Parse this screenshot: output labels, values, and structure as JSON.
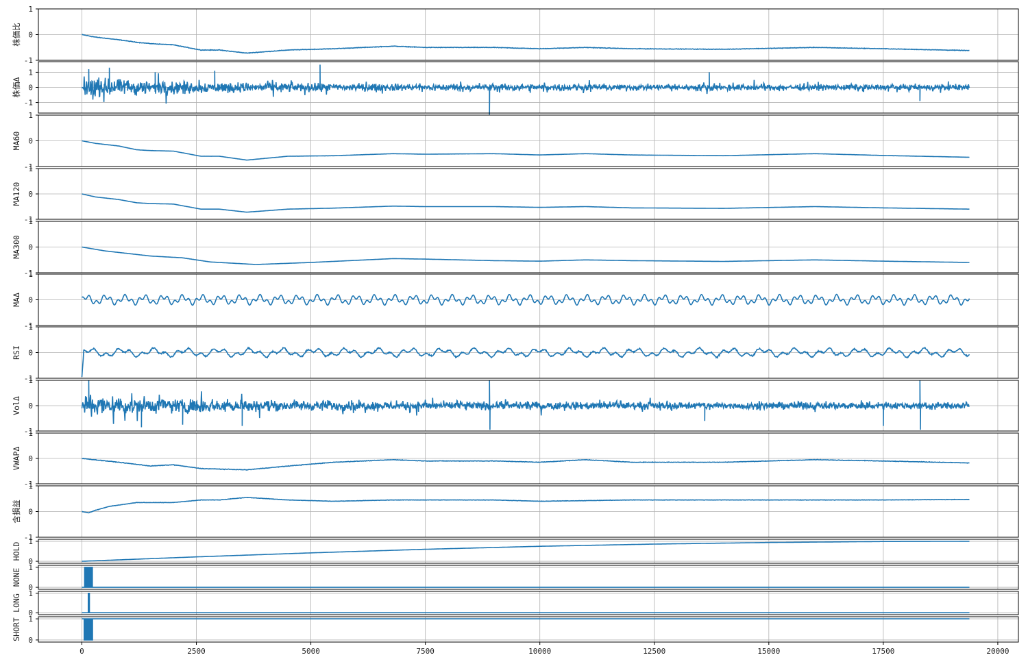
{
  "chart_data": {
    "type": "line",
    "x_range": [
      -950,
      20450
    ],
    "x_ticks": [
      0,
      2500,
      5000,
      7500,
      10000,
      12500,
      15000,
      17500,
      20000
    ],
    "n_points": 19380,
    "grid": true,
    "color": "#1f77b4",
    "panels": [
      {
        "name": "株価比",
        "ylim": [
          -1,
          1
        ],
        "yticks": [
          1,
          0,
          -1
        ],
        "kind": "line",
        "keypoints": [
          [
            0,
            0
          ],
          [
            300,
            -0.1
          ],
          [
            800,
            -0.2
          ],
          [
            1200,
            -0.3
          ],
          [
            1500,
            -0.35
          ],
          [
            2000,
            -0.4
          ],
          [
            2600,
            -0.6
          ],
          [
            3000,
            -0.6
          ],
          [
            3600,
            -0.72
          ],
          [
            4500,
            -0.6
          ],
          [
            5500,
            -0.55
          ],
          [
            6800,
            -0.45
          ],
          [
            7500,
            -0.5
          ],
          [
            9000,
            -0.5
          ],
          [
            10000,
            -0.55
          ],
          [
            11000,
            -0.5
          ],
          [
            12000,
            -0.55
          ],
          [
            14000,
            -0.57
          ],
          [
            16000,
            -0.5
          ],
          [
            17500,
            -0.55
          ],
          [
            19380,
            -0.62
          ]
        ],
        "noise": 0.015
      },
      {
        "name": "株価Δ",
        "ylim": [
          -1.7,
          1.7
        ],
        "yticks": [
          1,
          0,
          -1
        ],
        "kind": "noise",
        "amplitude": 0.28,
        "spikes": [
          [
            150,
            1.2
          ],
          [
            600,
            1.3
          ],
          [
            1600,
            1.0
          ],
          [
            2900,
            1.1
          ],
          [
            5200,
            1.5
          ],
          [
            8900,
            -1.8
          ],
          [
            13700,
            1.0
          ],
          [
            18300,
            -0.9
          ]
        ]
      },
      {
        "name": "MA60",
        "ylim": [
          -1,
          1
        ],
        "yticks": [
          1,
          0,
          -1
        ],
        "kind": "line",
        "keypoints": [
          [
            0,
            0
          ],
          [
            300,
            -0.1
          ],
          [
            800,
            -0.2
          ],
          [
            1200,
            -0.35
          ],
          [
            1500,
            -0.38
          ],
          [
            2000,
            -0.4
          ],
          [
            2600,
            -0.6
          ],
          [
            3000,
            -0.6
          ],
          [
            3600,
            -0.75
          ],
          [
            4500,
            -0.6
          ],
          [
            5500,
            -0.58
          ],
          [
            6800,
            -0.5
          ],
          [
            7500,
            -0.52
          ],
          [
            9000,
            -0.5
          ],
          [
            10000,
            -0.55
          ],
          [
            11000,
            -0.5
          ],
          [
            12000,
            -0.55
          ],
          [
            14000,
            -0.58
          ],
          [
            16000,
            -0.5
          ],
          [
            17500,
            -0.57
          ],
          [
            19380,
            -0.64
          ]
        ],
        "noise": 0.003
      },
      {
        "name": "MA120",
        "ylim": [
          -1,
          1
        ],
        "yticks": [
          1,
          0,
          -1
        ],
        "kind": "line",
        "keypoints": [
          [
            0,
            0
          ],
          [
            300,
            -0.12
          ],
          [
            800,
            -0.22
          ],
          [
            1200,
            -0.35
          ],
          [
            1500,
            -0.38
          ],
          [
            2000,
            -0.4
          ],
          [
            2600,
            -0.6
          ],
          [
            3000,
            -0.6
          ],
          [
            3600,
            -0.72
          ],
          [
            4500,
            -0.6
          ],
          [
            5500,
            -0.56
          ],
          [
            6800,
            -0.48
          ],
          [
            7500,
            -0.5
          ],
          [
            9000,
            -0.5
          ],
          [
            10000,
            -0.53
          ],
          [
            11000,
            -0.5
          ],
          [
            12000,
            -0.55
          ],
          [
            14000,
            -0.57
          ],
          [
            16000,
            -0.5
          ],
          [
            17500,
            -0.55
          ],
          [
            19380,
            -0.6
          ]
        ],
        "noise": 0.0
      },
      {
        "name": "MA300",
        "ylim": [
          -1,
          1
        ],
        "yticks": [
          1,
          0,
          -1
        ],
        "kind": "line",
        "keypoints": [
          [
            0,
            0
          ],
          [
            500,
            -0.15
          ],
          [
            1500,
            -0.35
          ],
          [
            2200,
            -0.42
          ],
          [
            2800,
            -0.58
          ],
          [
            3800,
            -0.68
          ],
          [
            5000,
            -0.6
          ],
          [
            6800,
            -0.45
          ],
          [
            7500,
            -0.47
          ],
          [
            9000,
            -0.53
          ],
          [
            10000,
            -0.55
          ],
          [
            11000,
            -0.5
          ],
          [
            12000,
            -0.53
          ],
          [
            14000,
            -0.56
          ],
          [
            16000,
            -0.5
          ],
          [
            17500,
            -0.55
          ],
          [
            19380,
            -0.6
          ]
        ],
        "noise": 0.0
      },
      {
        "name": "MAΔ",
        "ylim": [
          -1,
          1
        ],
        "yticks": [
          1,
          0,
          -1
        ],
        "kind": "wave",
        "amplitude": 0.15,
        "period": 420
      },
      {
        "name": "RSI",
        "ylim": [
          -1,
          1
        ],
        "yticks": [
          1,
          0,
          -1
        ],
        "kind": "wave",
        "amplitude": 0.13,
        "period": 700,
        "noise": 0.04,
        "dip_at_start": -0.95
      },
      {
        "name": "VolΔ",
        "ylim": [
          -1,
          1
        ],
        "yticks": [
          1,
          0,
          -1
        ],
        "kind": "noise",
        "amplitude": 0.2,
        "spikes": [
          [
            150,
            1.0
          ],
          [
            1300,
            -0.85
          ],
          [
            2200,
            -0.75
          ],
          [
            3500,
            -0.8
          ],
          [
            8900,
            1.0
          ],
          [
            8910,
            -0.95
          ],
          [
            13600,
            -0.6
          ],
          [
            17500,
            -0.8
          ],
          [
            18300,
            1.0
          ],
          [
            18310,
            -0.95
          ]
        ]
      },
      {
        "name": "VWAPΔ",
        "ylim": [
          -1,
          1
        ],
        "yticks": [
          1,
          0,
          -1
        ],
        "kind": "line",
        "keypoints": [
          [
            0,
            0
          ],
          [
            800,
            -0.15
          ],
          [
            1500,
            -0.3
          ],
          [
            2000,
            -0.25
          ],
          [
            2600,
            -0.4
          ],
          [
            3600,
            -0.45
          ],
          [
            4500,
            -0.3
          ],
          [
            5500,
            -0.15
          ],
          [
            6800,
            -0.05
          ],
          [
            7500,
            -0.1
          ],
          [
            9000,
            -0.1
          ],
          [
            10000,
            -0.15
          ],
          [
            11000,
            -0.05
          ],
          [
            12000,
            -0.15
          ],
          [
            14000,
            -0.15
          ],
          [
            16000,
            -0.05
          ],
          [
            17500,
            -0.1
          ],
          [
            19380,
            -0.18
          ]
        ],
        "noise": 0.015
      },
      {
        "name": "含損益",
        "ylim": [
          -1,
          1
        ],
        "yticks": [
          1,
          0,
          -1
        ],
        "kind": "line",
        "keypoints": [
          [
            0,
            0
          ],
          [
            150,
            -0.05
          ],
          [
            300,
            0.05
          ],
          [
            600,
            0.2
          ],
          [
            1200,
            0.35
          ],
          [
            2000,
            0.35
          ],
          [
            2600,
            0.45
          ],
          [
            3000,
            0.45
          ],
          [
            3600,
            0.55
          ],
          [
            4500,
            0.45
          ],
          [
            5500,
            0.4
          ],
          [
            6800,
            0.45
          ],
          [
            7500,
            0.45
          ],
          [
            9000,
            0.45
          ],
          [
            10000,
            0.4
          ],
          [
            12000,
            0.45
          ],
          [
            14000,
            0.45
          ],
          [
            16000,
            0.45
          ],
          [
            17500,
            0.45
          ],
          [
            19380,
            0.47
          ]
        ],
        "noise": 0.01
      },
      {
        "name": "HOLD",
        "ylim": [
          -0.1,
          1.1
        ],
        "yticks": [
          1,
          0
        ],
        "kind": "line",
        "keypoints": [
          [
            0,
            0
          ],
          [
            2500,
            0.22
          ],
          [
            5000,
            0.42
          ],
          [
            7500,
            0.6
          ],
          [
            10000,
            0.75
          ],
          [
            12500,
            0.86
          ],
          [
            15000,
            0.94
          ],
          [
            17500,
            0.99
          ],
          [
            19380,
            1.0
          ]
        ],
        "noise": 0.0
      },
      {
        "name": "NONE",
        "ylim": [
          -0.1,
          1.1
        ],
        "yticks": [
          1,
          0
        ],
        "kind": "bars",
        "burst": [
          60,
          230
        ],
        "rest": 0
      },
      {
        "name": "LONG",
        "ylim": [
          -0.1,
          1.1
        ],
        "yticks": [
          1,
          0
        ],
        "kind": "bars",
        "burst": [
          140,
          165
        ],
        "rest": 0
      },
      {
        "name": "SHORT",
        "ylim": [
          -0.1,
          1.1
        ],
        "yticks": [
          1,
          0
        ],
        "kind": "bars",
        "burst": [
          50,
          230
        ],
        "rest": 1
      }
    ]
  }
}
